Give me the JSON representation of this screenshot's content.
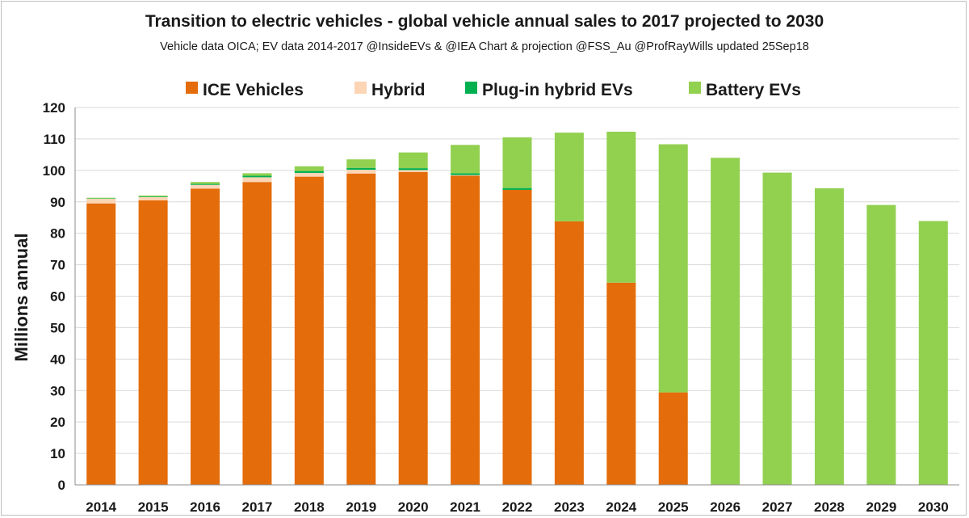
{
  "chart_data": {
    "type": "bar",
    "stacked": true,
    "title": "Transition to electric vehicles  - global vehicle annual sales to 2017 projected to 2030",
    "subtitle": "Vehicle data OICA; EV data 2014-2017 @InsideEVs & @IEA  Chart & projection @FSS_Au  @ProfRayWills updated 25Sep18",
    "xlabel": "",
    "ylabel": "Millions annual",
    "ylim": [
      0,
      120
    ],
    "yticks": [
      0,
      10,
      20,
      30,
      40,
      50,
      60,
      70,
      80,
      90,
      100,
      110,
      120
    ],
    "grid": true,
    "legend_position": "top",
    "categories": [
      "2014",
      "2015",
      "2016",
      "2017",
      "2018",
      "2019",
      "2020",
      "2021",
      "2022",
      "2023",
      "2024",
      "2025",
      "2026",
      "2027",
      "2028",
      "2029",
      "2030"
    ],
    "series": [
      {
        "name": "ICE Vehicles",
        "color": "#e46c0a",
        "values": [
          89.5,
          90.5,
          94.2,
          96.3,
          98.0,
          99.0,
          99.5,
          98.3,
          93.8,
          83.8,
          64.3,
          29.4,
          0,
          0,
          0,
          0,
          0
        ]
      },
      {
        "name": "Hybrid",
        "color": "#fcd5b5",
        "values": [
          1.5,
          1.0,
          1.2,
          1.5,
          1.2,
          1.2,
          0.6,
          0.2,
          0,
          0,
          0,
          0,
          0,
          0,
          0,
          0,
          0
        ]
      },
      {
        "name": "Plug-in hybrid EVs",
        "color": "#00b050",
        "values": [
          0.1,
          0.2,
          0.3,
          0.5,
          0.6,
          0.6,
          0.6,
          0.6,
          0.6,
          0,
          0,
          0,
          0,
          0,
          0,
          0,
          0
        ]
      },
      {
        "name": "Battery EVs",
        "color": "#92d050",
        "values": [
          0.2,
          0.3,
          0.6,
          0.8,
          1.5,
          2.7,
          5.0,
          9.0,
          16.1,
          28.2,
          48.0,
          78.9,
          104.0,
          99.3,
          94.3,
          89.0,
          83.9
        ]
      }
    ]
  }
}
